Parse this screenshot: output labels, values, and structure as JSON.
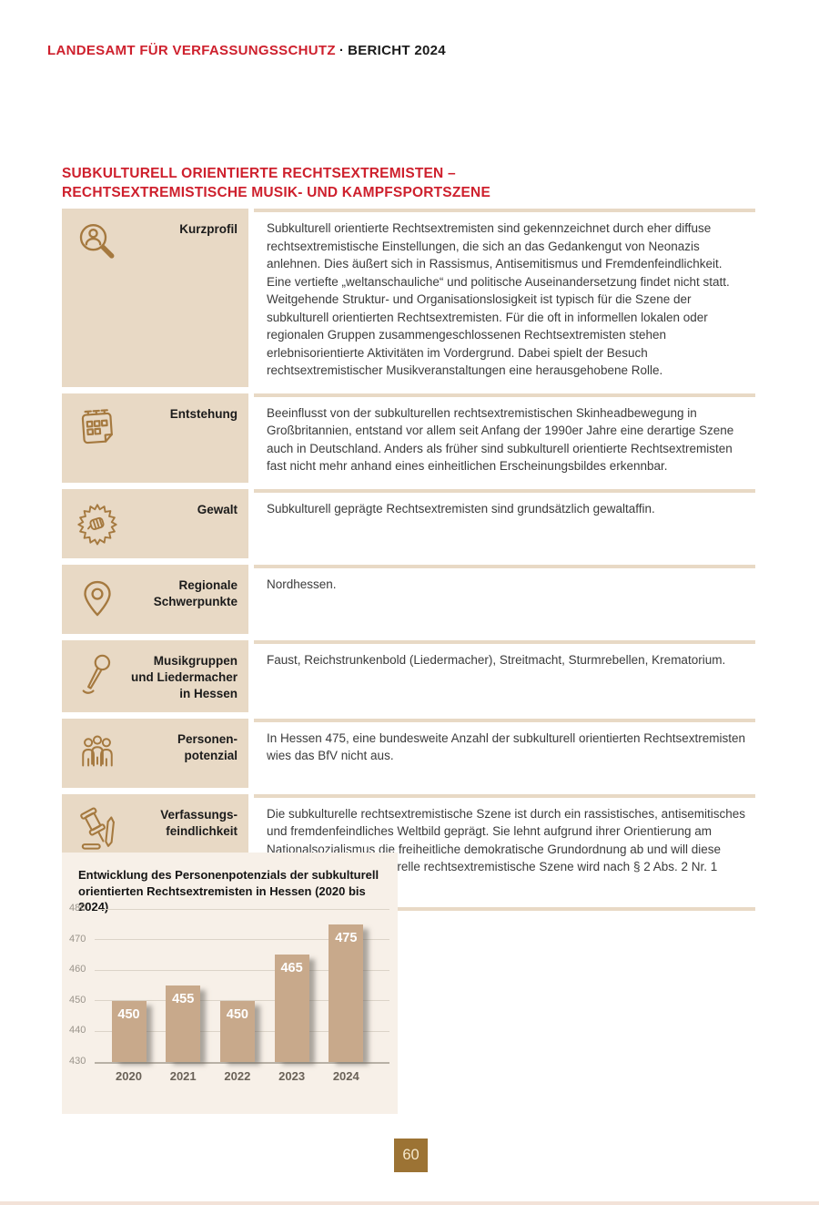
{
  "header": {
    "agency": "LANDESAMT FÜR VERFASSUNGSSCHUTZ",
    "separator": "·",
    "report": "BERICHT 2024"
  },
  "section": {
    "title": "SUBKULTURELL ORIENTIERTE RECHTSEXTREMISTEN –\nRECHTSEXTREMISTISCHE MUSIK- UND KAMPFSPORTSZENE"
  },
  "profile_table": {
    "rows": [
      {
        "icon": "person-search-icon",
        "label": "Kurzprofil",
        "text": "Subkulturell orientierte Rechtsextremisten sind gekennzeichnet durch eher diffuse rechtsextremistische Einstellungen, die sich an das Gedankengut von Neonazis anlehnen. Dies äußert sich in Rassismus, Antisemitismus und Fremdenfeindlichkeit. Eine vertiefte „weltanschauliche“ und politische Auseinandersetzung findet nicht statt. Weitgehende Struktur- und Organisationslosigkeit ist typisch für die Szene der subkulturell orientierten Rechtsextremisten. Für die oft in informellen lokalen oder regionalen Gruppen zusammengeschlossenen Rechtsextremisten stehen erlebnisorientierte Aktivitäten im Vordergrund. Dabei spielt der Besuch rechtsextremistischer Musikveranstaltungen eine herausgehobene Rolle."
      },
      {
        "icon": "calendar-icon",
        "label": "Entstehung",
        "text": "Beeinflusst von der subkulturellen rechtsextremistischen Skinheadbewegung in Großbritannien, entstand vor allem seit Anfang der 1990er Jahre eine derartige Szene auch in Deutschland. Anders als früher sind subkulturell orientierte Rechtsextremisten fast nicht mehr anhand eines einheitlichen Erscheinungsbildes erkennbar."
      },
      {
        "icon": "fist-burst-icon",
        "label": "Gewalt",
        "text": "Subkulturell geprägte Rechtsextremisten sind grundsätzlich gewaltaffin."
      },
      {
        "icon": "map-pin-icon",
        "label": "Regionale\nSchwerpunkte",
        "text": "Nordhessen."
      },
      {
        "icon": "microphone-icon",
        "label": "Musikgruppen\nund Liedermacher\nin Hessen",
        "text": "Faust, Reichstrunkenbold (Liedermacher), Streitmacht, Sturmrebellen, Krematorium."
      },
      {
        "icon": "people-group-icon",
        "label": "Personen-\npotenzial",
        "text": "In Hessen 475, eine bundesweite Anzahl der subkulturell orientierten Rechtsextremisten wies das BfV nicht aus."
      },
      {
        "icon": "gavel-pencil-icon",
        "label": "Verfassungs-\nfeindlichkeit",
        "text": "Die subkulturelle rechtsextremistische Szene ist durch ein rassistisches, antisemitisches und fremdenfeindliches Weltbild geprägt. Sie lehnt aufgrund ihrer Orientierung am Nationalsozialismus die freiheitliche demokratische Grundordnung ab und will diese beseitigen. Die subkulturelle rechtsextremistische Szene wird nach § 2 Abs. 2 Nr. 1 HVSG beobachtet."
      }
    ]
  },
  "chart_data": {
    "type": "bar",
    "title": "Entwicklung des Personenpotenzials der subkulturell\norientierten Rechtsextremisten in Hessen (2020 bis 2024)",
    "categories": [
      "2020",
      "2021",
      "2022",
      "2023",
      "2024"
    ],
    "values": [
      450,
      455,
      450,
      465,
      475
    ],
    "xlabel": "",
    "ylabel": "",
    "ylim": [
      430,
      480
    ],
    "yticks": [
      430,
      440,
      450,
      460,
      470,
      480
    ],
    "grid": true,
    "legend": false,
    "bar_color": "#c8a98b",
    "value_label_color": "#ffffff"
  },
  "page_number": "60",
  "colors": {
    "accent_red": "#ce202d",
    "label_cell_beige": "#e8d9c5",
    "icon_brown": "#a5793f",
    "chart_background": "#f7f0e8",
    "bar_fill": "#c8a98b",
    "page_box_brown": "#9c7334"
  }
}
